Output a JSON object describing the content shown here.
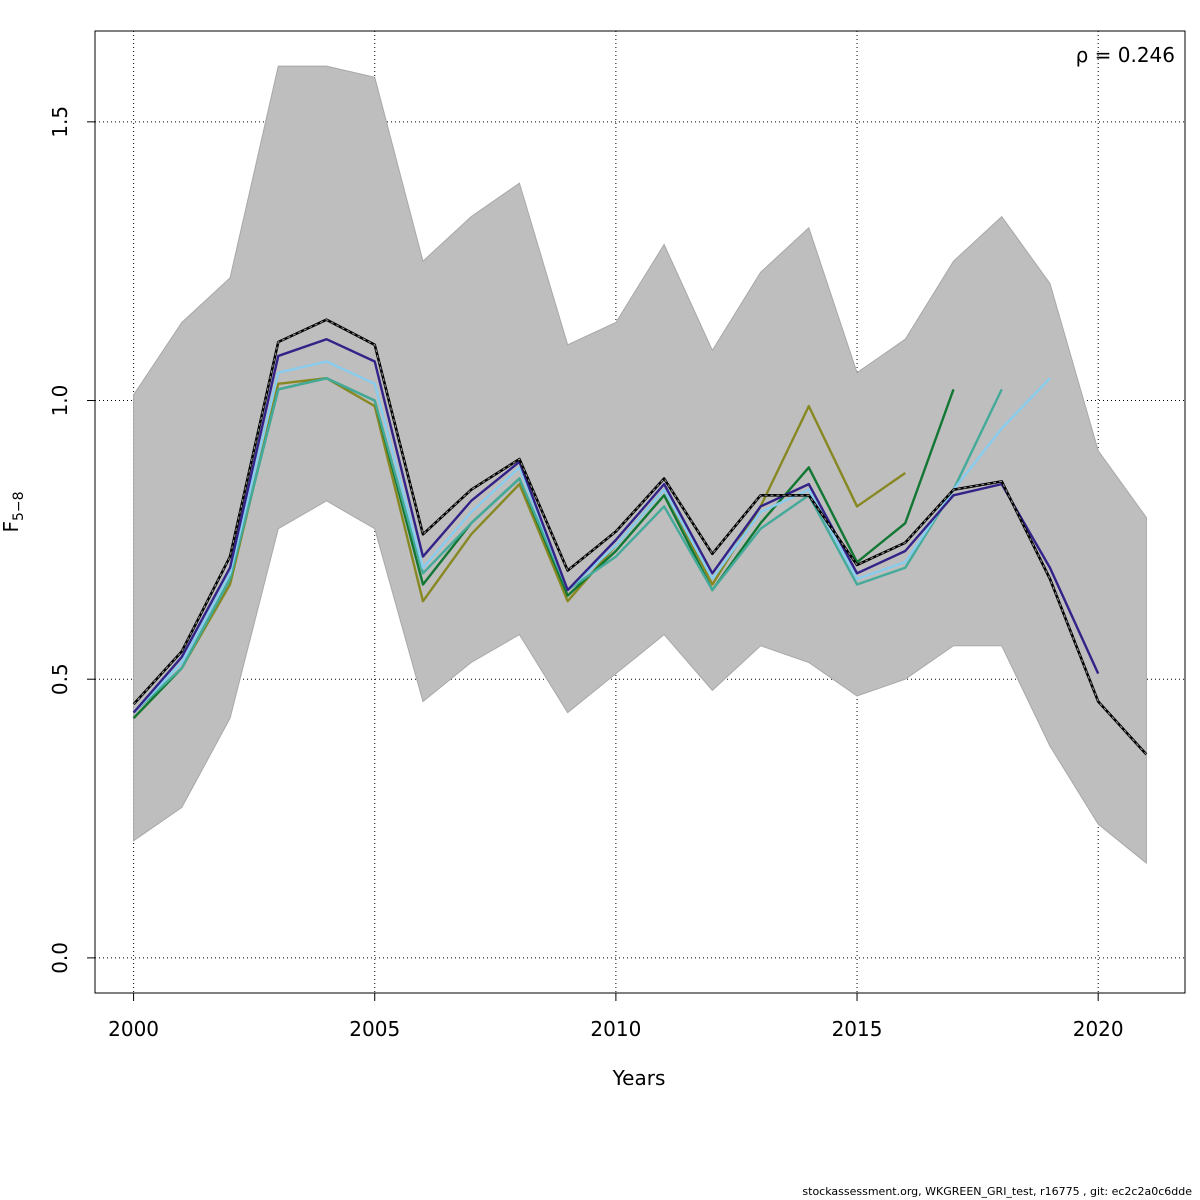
{
  "chart_data": {
    "type": "line",
    "title": "",
    "xlabel": "Years",
    "ylabel_main": "F",
    "ylabel_sub": "5−8",
    "xlim": [
      1999.2,
      2021.8
    ],
    "ylim": [
      -0.063,
      1.663
    ],
    "x_ticks": [
      2000,
      2005,
      2010,
      2015,
      2020
    ],
    "y_ticks": [
      0.0,
      0.5,
      1.0,
      1.5
    ],
    "y_tick_labels": [
      "0.0",
      "0.5",
      "1.0",
      "1.5"
    ],
    "grid": true,
    "annotation": "ρ = 0.246",
    "band": {
      "color": "#bebebe",
      "x": [
        2000,
        2001,
        2002,
        2003,
        2004,
        2005,
        2006,
        2007,
        2008,
        2009,
        2010,
        2011,
        2012,
        2013,
        2014,
        2015,
        2016,
        2017,
        2018,
        2019,
        2020,
        2021
      ],
      "upper": [
        1.01,
        1.14,
        1.22,
        1.6,
        1.6,
        1.58,
        1.25,
        1.33,
        1.39,
        1.1,
        1.14,
        1.28,
        1.09,
        1.23,
        1.31,
        1.05,
        1.11,
        1.25,
        1.33,
        1.21,
        0.91,
        0.79
      ],
      "lower": [
        0.21,
        0.27,
        0.43,
        0.77,
        0.82,
        0.77,
        0.46,
        0.53,
        0.58,
        0.44,
        0.51,
        0.58,
        0.48,
        0.56,
        0.53,
        0.47,
        0.5,
        0.56,
        0.56,
        0.38,
        0.24,
        0.17
      ]
    },
    "series": [
      {
        "color": "#888822",
        "x": [
          2000,
          2001,
          2002,
          2003,
          2004,
          2005,
          2006,
          2007,
          2008,
          2009,
          2010,
          2011,
          2012,
          2013,
          2014,
          2015,
          2016
        ],
        "y": [
          0.43,
          0.52,
          0.67,
          1.03,
          1.04,
          0.99,
          0.64,
          0.76,
          0.85,
          0.64,
          0.74,
          0.84,
          0.67,
          0.81,
          0.99,
          0.81,
          0.87
        ]
      },
      {
        "color": "#117733",
        "x": [
          2000,
          2001,
          2002,
          2003,
          2004,
          2005,
          2006,
          2007,
          2008,
          2009,
          2010,
          2011,
          2012,
          2013,
          2014,
          2015,
          2016,
          2017
        ],
        "y": [
          0.43,
          0.52,
          0.68,
          1.02,
          1.04,
          1.0,
          0.67,
          0.78,
          0.86,
          0.65,
          0.73,
          0.83,
          0.66,
          0.78,
          0.88,
          0.71,
          0.78,
          1.02
        ]
      },
      {
        "color": "#44aa99",
        "x": [
          2000,
          2001,
          2002,
          2003,
          2004,
          2005,
          2006,
          2007,
          2008,
          2009,
          2010,
          2011,
          2012,
          2013,
          2014,
          2015,
          2016,
          2017,
          2018
        ],
        "y": [
          0.44,
          0.52,
          0.68,
          1.02,
          1.04,
          1.0,
          0.69,
          0.78,
          0.86,
          0.66,
          0.72,
          0.81,
          0.66,
          0.77,
          0.83,
          0.67,
          0.7,
          0.84,
          1.02
        ]
      },
      {
        "color": "#88ccee",
        "x": [
          2000,
          2001,
          2002,
          2003,
          2004,
          2005,
          2006,
          2007,
          2008,
          2009,
          2010,
          2011,
          2012,
          2013,
          2014,
          2015,
          2016,
          2017,
          2018,
          2019
        ],
        "y": [
          0.44,
          0.53,
          0.69,
          1.05,
          1.07,
          1.03,
          0.7,
          0.8,
          0.88,
          0.66,
          0.74,
          0.84,
          0.68,
          0.8,
          0.84,
          0.68,
          0.71,
          0.84,
          0.95,
          1.04
        ]
      },
      {
        "color": "#332288",
        "x": [
          2000,
          2001,
          2002,
          2003,
          2004,
          2005,
          2006,
          2007,
          2008,
          2009,
          2010,
          2011,
          2012,
          2013,
          2014,
          2015,
          2016,
          2017,
          2018,
          2019,
          2020
        ],
        "y": [
          0.44,
          0.54,
          0.7,
          1.08,
          1.11,
          1.07,
          0.72,
          0.82,
          0.89,
          0.66,
          0.75,
          0.85,
          0.69,
          0.81,
          0.85,
          0.69,
          0.73,
          0.83,
          0.85,
          0.7,
          0.51
        ]
      },
      {
        "color": "#000000",
        "dashed": true,
        "x": [
          2000,
          2001,
          2002,
          2003,
          2004,
          2005,
          2006,
          2007,
          2008,
          2009,
          2010,
          2011,
          2012,
          2013,
          2014,
          2015,
          2016,
          2017,
          2018,
          2019,
          2020,
          2021
        ],
        "y": [
          0.455,
          0.55,
          0.72,
          1.105,
          1.145,
          1.1,
          0.76,
          0.84,
          0.895,
          0.695,
          0.765,
          0.86,
          0.725,
          0.83,
          0.83,
          0.705,
          0.745,
          0.84,
          0.855,
          0.68,
          0.46,
          0.365
        ]
      }
    ]
  },
  "footer_text": "stockassessment.org, WKGREEN_GRI_test, r16775 , git: ec2c2a0c6dde"
}
